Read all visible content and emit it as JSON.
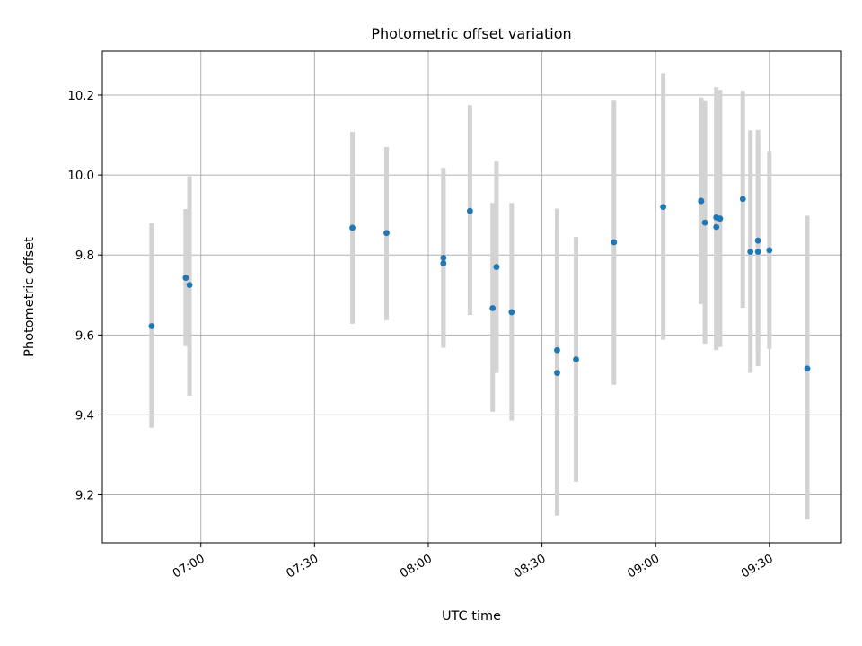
{
  "chart_data": {
    "type": "scatter",
    "title": "Photometric offset variation",
    "xlabel": "UTC time",
    "ylabel": "Photometric offset",
    "x_axis_type": "time",
    "xlim": [
      "06:34",
      "09:49"
    ],
    "ylim": [
      9.08,
      10.31
    ],
    "x_ticks": [
      "07:00",
      "07:30",
      "08:00",
      "08:30",
      "09:00",
      "09:30"
    ],
    "y_ticks": [
      9.2,
      9.4,
      9.6,
      9.8,
      10.0,
      10.2
    ],
    "y_tick_labels": [
      "9.2",
      "9.4",
      "9.6",
      "9.8",
      "10.0",
      "10.2"
    ],
    "grid": true,
    "marker_color": "#1f77b4",
    "errorbar_color": "#d3d3d3",
    "points": [
      {
        "t": "06:47",
        "y": 9.622,
        "lo": 9.368,
        "hi": 9.88
      },
      {
        "t": "06:56",
        "y": 9.743,
        "lo": 9.572,
        "hi": 9.915
      },
      {
        "t": "06:57",
        "y": 9.725,
        "lo": 9.448,
        "hi": 9.997
      },
      {
        "t": "07:40",
        "y": 9.868,
        "lo": 9.628,
        "hi": 10.108
      },
      {
        "t": "07:49",
        "y": 9.855,
        "lo": 9.637,
        "hi": 10.07
      },
      {
        "t": "08:04",
        "y": 9.793,
        "lo": 9.578,
        "hi": 10.018
      },
      {
        "t": "08:04",
        "y": 9.779,
        "lo": 9.568,
        "hi": 9.99
      },
      {
        "t": "08:11",
        "y": 9.91,
        "lo": 9.65,
        "hi": 10.175
      },
      {
        "t": "08:17",
        "y": 9.667,
        "lo": 9.408,
        "hi": 9.93
      },
      {
        "t": "08:18",
        "y": 9.77,
        "lo": 9.505,
        "hi": 10.036
      },
      {
        "t": "08:22",
        "y": 9.657,
        "lo": 9.386,
        "hi": 9.93
      },
      {
        "t": "08:34",
        "y": 9.505,
        "lo": 9.148,
        "hi": 9.866
      },
      {
        "t": "08:34",
        "y": 9.562,
        "lo": 9.21,
        "hi": 9.916
      },
      {
        "t": "08:39",
        "y": 9.539,
        "lo": 9.233,
        "hi": 9.845
      },
      {
        "t": "08:49",
        "y": 9.832,
        "lo": 9.476,
        "hi": 10.186
      },
      {
        "t": "09:02",
        "y": 9.92,
        "lo": 9.588,
        "hi": 10.255
      },
      {
        "t": "09:12",
        "y": 9.935,
        "lo": 9.677,
        "hi": 10.194
      },
      {
        "t": "09:12",
        "y": 9.935,
        "lo": 9.679,
        "hi": 10.19
      },
      {
        "t": "09:13",
        "y": 9.881,
        "lo": 9.578,
        "hi": 10.185
      },
      {
        "t": "09:16",
        "y": 9.87,
        "lo": 9.562,
        "hi": 10.176
      },
      {
        "t": "09:16",
        "y": 9.894,
        "lo": 9.565,
        "hi": 10.22
      },
      {
        "t": "09:17",
        "y": 9.891,
        "lo": 9.57,
        "hi": 10.213
      },
      {
        "t": "09:23",
        "y": 9.94,
        "lo": 9.668,
        "hi": 10.211
      },
      {
        "t": "09:25",
        "y": 9.808,
        "lo": 9.505,
        "hi": 10.112
      },
      {
        "t": "09:27",
        "y": 9.808,
        "lo": 9.522,
        "hi": 10.094
      },
      {
        "t": "09:27",
        "y": 9.836,
        "lo": 9.56,
        "hi": 10.113
      },
      {
        "t": "09:30",
        "y": 9.812,
        "lo": 9.565,
        "hi": 10.06
      },
      {
        "t": "09:40",
        "y": 9.516,
        "lo": 9.138,
        "hi": 9.898
      }
    ]
  }
}
